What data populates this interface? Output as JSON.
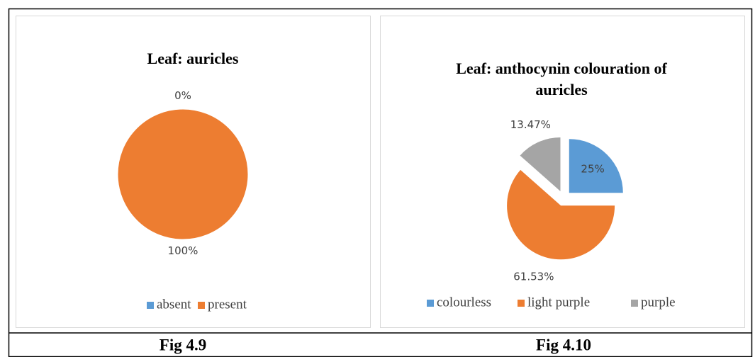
{
  "chart_data": [
    {
      "type": "pie",
      "title": "Leaf: auricles",
      "categories": [
        "absent",
        "present"
      ],
      "values": [
        0,
        100
      ],
      "value_labels": [
        "0%",
        "100%"
      ],
      "colors": [
        "#5b9bd5",
        "#ed7d31"
      ],
      "legend": "bottom"
    },
    {
      "type": "pie",
      "title": "Leaf: anthocynin colouration of auricles",
      "categories": [
        "colourless",
        "light purple",
        "purple"
      ],
      "values": [
        25,
        61.53,
        13.47
      ],
      "value_labels": [
        "25%",
        "61.53%",
        "13.47%"
      ],
      "colors": [
        "#5b9bd5",
        "#ed7d31",
        "#a5a5a5"
      ],
      "exploded": true,
      "legend": "bottom"
    }
  ],
  "captions": [
    "Fig 4.9",
    "Fig 4.10"
  ]
}
